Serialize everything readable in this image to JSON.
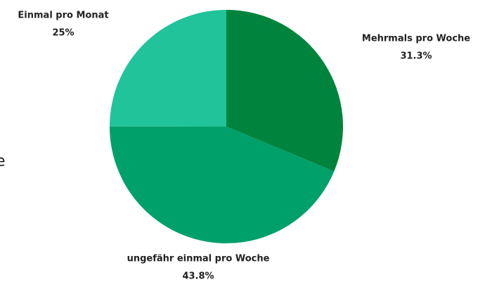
{
  "chart_data": {
    "type": "pie",
    "categories": [
      "Mehrmals pro Woche",
      "ungefähr einmal pro Woche",
      "Einmal pro Monat"
    ],
    "values": [
      31.3,
      43.8,
      25
    ],
    "value_labels": [
      "31.3%",
      "43.8%",
      "25%"
    ],
    "colors": [
      "#00843d",
      "#00a06a",
      "#20c39a"
    ]
  },
  "cropped_text": "e"
}
